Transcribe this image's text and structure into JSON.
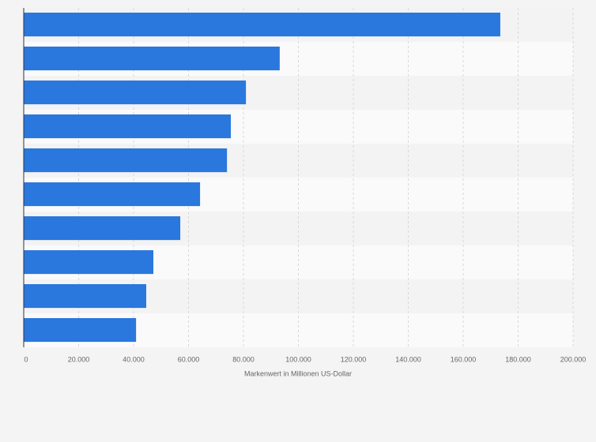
{
  "chart_data": {
    "type": "barh",
    "x_label": "Markenwert in Millionen US-Dollar",
    "categories": [
      null,
      null,
      null,
      null,
      null,
      null,
      null,
      null,
      null,
      null
    ],
    "values": [
      173500,
      93200,
      80900,
      75400,
      74000,
      64200,
      57000,
      47200,
      44600,
      40900
    ],
    "color": "#2a77dd",
    "xlim": [
      0,
      200000
    ],
    "xticks": [
      0,
      {
        "value": 20000,
        "label": "20.000"
      },
      {
        "value": 40000,
        "label": "40.000"
      },
      {
        "value": 60000,
        "label": "60.000"
      },
      {
        "value": 80000,
        "label": "80.000"
      },
      {
        "value": 100000,
        "label": "100.000"
      },
      {
        "value": 120000,
        "label": "120.000"
      },
      {
        "value": 140000,
        "label": "140.000"
      },
      {
        "value": 160000,
        "label": "160.000"
      },
      {
        "value": 180000,
        "label": "180.000"
      },
      {
        "value": 200000,
        "label": "200.000"
      }
    ],
    "grid": true
  }
}
